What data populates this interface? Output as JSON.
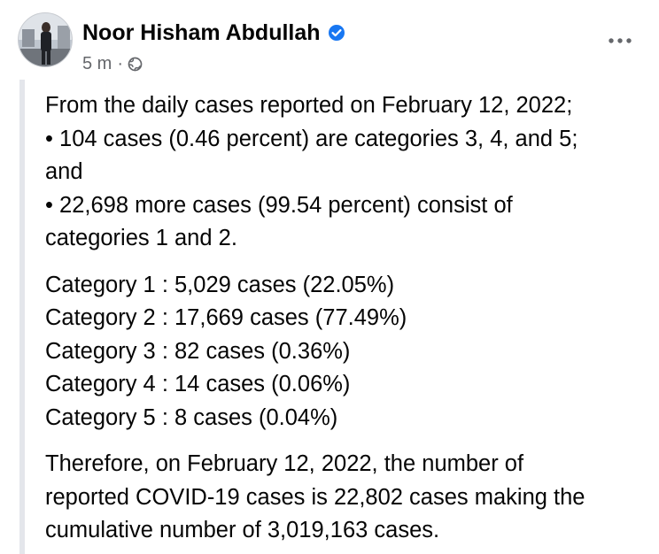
{
  "post": {
    "author": "Noor Hisham Abdullah",
    "timestamp": "5 m",
    "separator": "·",
    "icons": {
      "verified": "verified-badge-icon",
      "audience": "globe-icon",
      "menu": "more-options-icon"
    },
    "colors": {
      "verified_blue": "#1877f2",
      "secondary_text": "#65676b",
      "quote_bar": "#e4e6eb"
    }
  },
  "body": {
    "intro": [
      "From the daily cases reported on February 12, 2022;",
      "• 104 cases (0.46 percent) are categories 3, 4, and 5;",
      "and",
      "• 22,698 more cases (99.54 percent) consist of",
      "categories 1 and 2."
    ],
    "categories": [
      "Category 1 : 5,029 cases (22.05%)",
      "Category 2 : 17,669 cases (77.49%)",
      "Category 3 : 82 cases (0.36%)",
      "Category 4 : 14 cases (0.06%)",
      "Category 5 : 8 cases (0.04%)"
    ],
    "conclusion": [
      "Therefore, on February 12, 2022, the number of",
      "reported COVID-19 cases is 22,802 cases making the",
      "cumulative number of 3,019,163 cases."
    ]
  }
}
